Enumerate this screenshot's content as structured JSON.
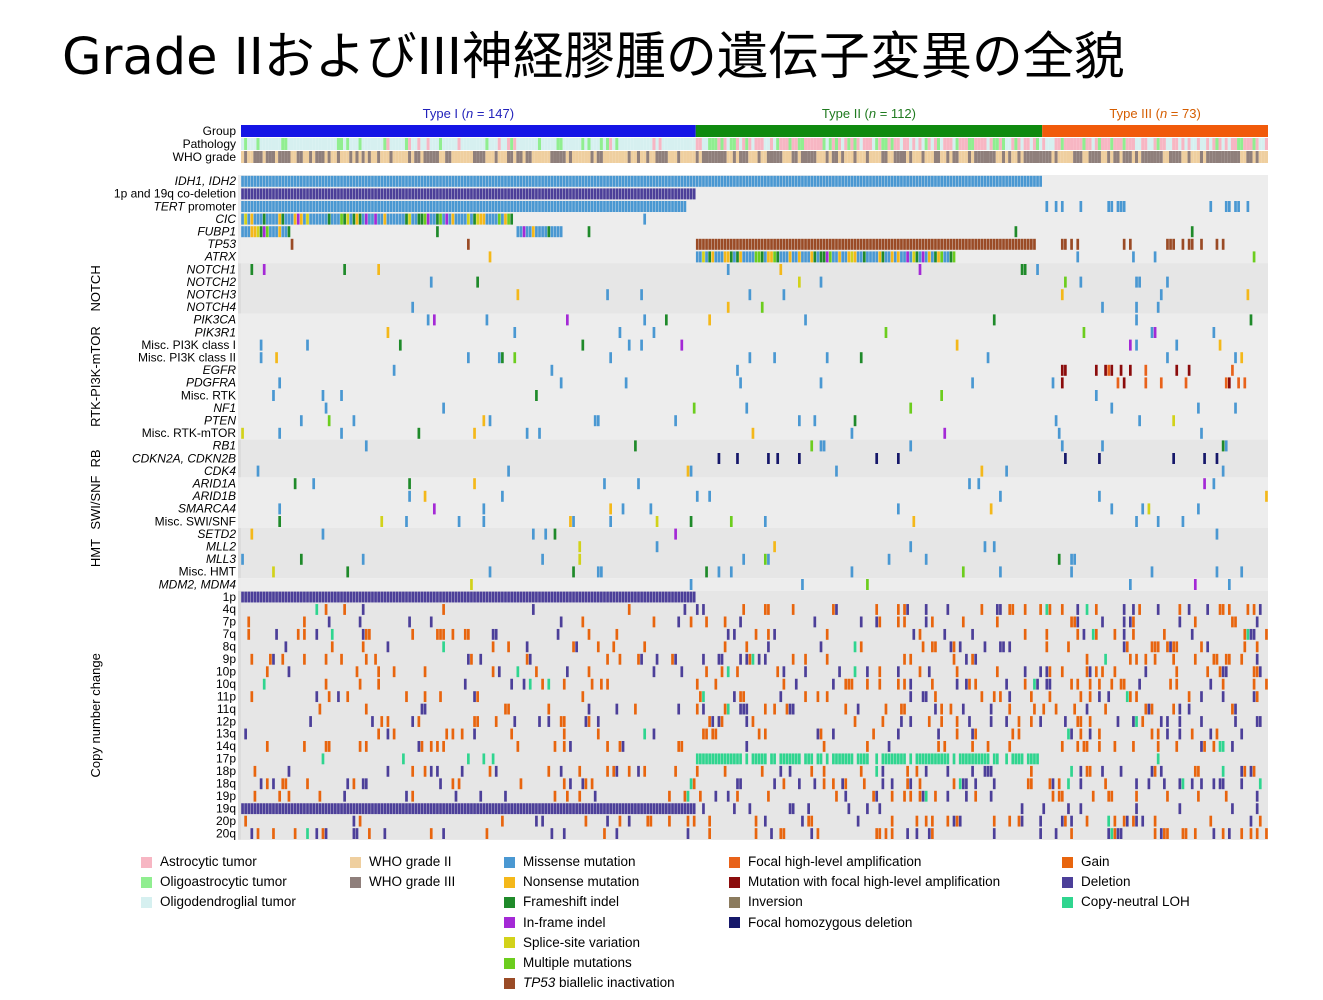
{
  "title": "Grade IIおよびIII神経膠腫の遺伝子変異の全貌",
  "chart_data": {
    "type": "heatmap",
    "groups": [
      {
        "label": "Type I (n = 147)",
        "prefix": "Type I (",
        "italic": "n",
        "suffix": " = 147)",
        "n": 147,
        "color": "#1414e6",
        "text_color": "#2222bb"
      },
      {
        "label": "Type II (n = 112)",
        "prefix": "Type II (",
        "italic": "n",
        "suffix": " = 112)",
        "n": 112,
        "color": "#0f8a0f",
        "text_color": "#1f7a1f"
      },
      {
        "label": "Type III (n = 73)",
        "prefix": "Type III (",
        "italic": "n",
        "suffix": " = 73)",
        "n": 73,
        "color": "#f15a0a",
        "text_color": "#d55d00"
      }
    ],
    "annotation_rows": [
      "Group",
      "Pathology",
      "WHO grade"
    ],
    "sections": [
      {
        "name": "",
        "rows": [
          {
            "label": "IDH1, IDH2",
            "italic": true
          },
          {
            "label": "1p and 19q co-deletion",
            "italic": false
          },
          {
            "label": "TERT",
            "label_suffix": " promoter",
            "italic": true
          },
          {
            "label": "CIC",
            "italic": true
          },
          {
            "label": "FUBP1",
            "italic": true
          },
          {
            "label": "TP53",
            "italic": true
          },
          {
            "label": "ATRX",
            "italic": true
          }
        ]
      },
      {
        "name": "NOTCH",
        "rows": [
          {
            "label": "NOTCH1",
            "italic": true
          },
          {
            "label": "NOTCH2",
            "italic": true
          },
          {
            "label": "NOTCH3",
            "italic": true
          },
          {
            "label": "NOTCH4",
            "italic": true
          }
        ]
      },
      {
        "name": "RTK-PI3K-mTOR",
        "rows": [
          {
            "label": "PIK3CA",
            "italic": true
          },
          {
            "label": "PIK3R1",
            "italic": true
          },
          {
            "label": "Misc. PI3K class I",
            "italic": false
          },
          {
            "label": "Misc. PI3K class II",
            "italic": false
          },
          {
            "label": "EGFR",
            "italic": true
          },
          {
            "label": "PDGFRA",
            "italic": true
          },
          {
            "label": "Misc. RTK",
            "italic": false
          },
          {
            "label": "NF1",
            "italic": true
          },
          {
            "label": "PTEN",
            "italic": true
          },
          {
            "label": "Misc. RTK-mTOR",
            "italic": false
          }
        ]
      },
      {
        "name": "RB",
        "rows": [
          {
            "label": "RB1",
            "italic": true
          },
          {
            "label": "CDKN2A, CDKN2B",
            "italic": true
          },
          {
            "label": "CDK4",
            "italic": true
          }
        ]
      },
      {
        "name": "SWI/SNF",
        "rows": [
          {
            "label": "ARID1A",
            "italic": true
          },
          {
            "label": "ARID1B",
            "italic": true
          },
          {
            "label": "SMARCA4",
            "italic": true
          },
          {
            "label": "Misc. SWI/SNF",
            "italic": false
          }
        ]
      },
      {
        "name": "HMT",
        "rows": [
          {
            "label": "SETD2",
            "italic": true
          },
          {
            "label": "MLL2",
            "italic": true
          },
          {
            "label": "MLL3",
            "italic": true
          },
          {
            "label": "Misc. HMT",
            "italic": false
          }
        ]
      },
      {
        "name": "",
        "rows": [
          {
            "label": "MDM2, MDM4",
            "italic": true
          }
        ]
      },
      {
        "name": "Copy number change",
        "rows": [
          {
            "label": "1p"
          },
          {
            "label": "4q"
          },
          {
            "label": "7p"
          },
          {
            "label": "7q"
          },
          {
            "label": "8q"
          },
          {
            "label": "9p"
          },
          {
            "label": "10p"
          },
          {
            "label": "10q"
          },
          {
            "label": "11p"
          },
          {
            "label": "11q"
          },
          {
            "label": "12p"
          },
          {
            "label": "13q"
          },
          {
            "label": "14q"
          },
          {
            "label": "17p"
          },
          {
            "label": "18p"
          },
          {
            "label": "18q"
          },
          {
            "label": "19p"
          },
          {
            "label": "19q"
          },
          {
            "label": "20p"
          },
          {
            "label": "20q"
          }
        ]
      }
    ],
    "legend": [
      [
        {
          "label": "Astrocytic tumor",
          "color": "#f7b6c3"
        },
        {
          "label": "Oligoastrocytic tumor",
          "color": "#90ee90"
        },
        {
          "label": "Oligodendroglial tumor",
          "color": "#d6f0f0"
        }
      ],
      [
        {
          "label": "WHO grade II",
          "color": "#efcf9f"
        },
        {
          "label": "WHO grade III",
          "color": "#8f7f7b"
        }
      ],
      [
        {
          "label": "Missense mutation",
          "color": "#4a98d2"
        },
        {
          "label": "Nonsense mutation",
          "color": "#f4b81a"
        },
        {
          "label": "Frameshift indel",
          "color": "#1f8a2a"
        },
        {
          "label": "In-frame indel",
          "color": "#a429d6"
        },
        {
          "label": "Splice-site variation",
          "color": "#d2d21a"
        },
        {
          "label": "Multiple mutations",
          "color": "#6ccd1e"
        },
        {
          "label": "TP53 biallelic inactivation",
          "italic_part": "TP53",
          "rest": " biallelic inactivation",
          "color": "#9a4b26"
        }
      ],
      [
        {
          "label": "Focal high-level amplification",
          "color": "#e8621a"
        },
        {
          "label": "Mutation with focal high-level amplification",
          "color": "#8b0c0c"
        },
        {
          "label": "Inversion",
          "color": "#8b7b5e"
        },
        {
          "label": "Focal homozygous deletion",
          "color": "#16186a"
        }
      ],
      [
        {
          "label": "Gain",
          "color": "#e8650e"
        },
        {
          "label": "Deletion",
          "color": "#4c3f99"
        },
        {
          "label": "Copy-neutral LOH",
          "color": "#2fd58f"
        }
      ]
    ]
  }
}
